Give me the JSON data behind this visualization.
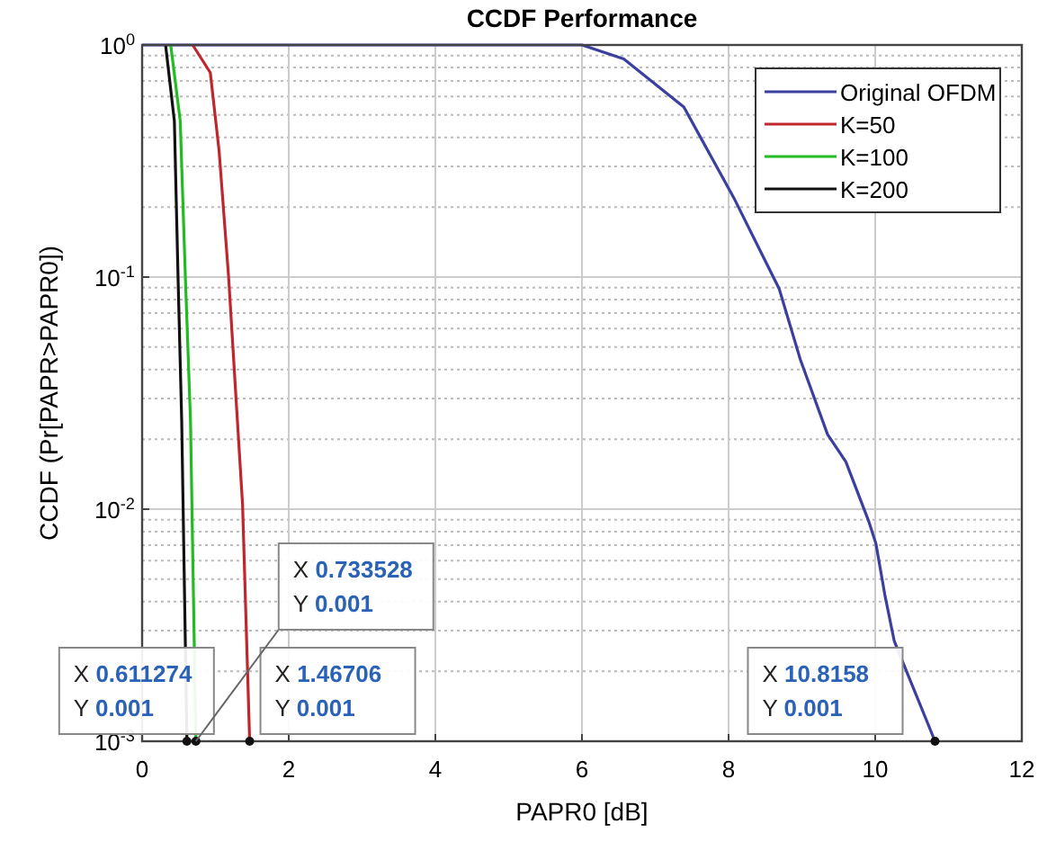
{
  "chart_data": {
    "type": "line",
    "title": "CCDF Performance",
    "xlabel": "PAPR0 [dB]",
    "ylabel": "CCDF (Pr[PAPR>PAPR0])",
    "log": "y",
    "grid": true,
    "legend": "top right",
    "line_style": "solid",
    "marker": "none",
    "xlim": [
      0,
      12
    ],
    "xticks": [
      0,
      2,
      4,
      6,
      8,
      10,
      12
    ],
    "ylim": [
      0.001,
      1
    ],
    "yticks": [
      {
        "value": 0.001,
        "label": "10$^{-3}$"
      },
      {
        "value": 0.01,
        "label": "10$^{-2}$"
      },
      {
        "value": 0.1,
        "label": "10$^{-1}$"
      },
      {
        "value": 1,
        "label": "10$^{0}$"
      }
    ],
    "series": [
      {
        "name": "Original OFDM",
        "color": "#3b3fa0",
        "x": [
          0,
          6.0,
          6.57,
          7.39,
          8.07,
          8.69,
          8.98,
          9.35,
          9.6,
          9.91,
          10.01,
          10.13,
          10.26,
          10.8158
        ],
        "values": [
          1,
          1,
          0.87,
          0.54,
          0.22,
          0.089,
          0.044,
          0.021,
          0.016,
          0.0089,
          0.0071,
          0.0043,
          0.0027,
          0.001
        ]
      },
      {
        "name": "K=50",
        "color": "#c0272d",
        "x": [
          0.69,
          0.93,
          1.05,
          1.18,
          1.3,
          1.37,
          1.46706
        ],
        "values": [
          1,
          0.76,
          0.35,
          0.1,
          0.024,
          0.0105,
          0.001
        ]
      },
      {
        "name": "K=100",
        "color": "#22bb22",
        "x": [
          0.39,
          0.52,
          0.59,
          0.66,
          0.733528
        ],
        "values": [
          1,
          0.47,
          0.1,
          0.024,
          0.001
        ]
      },
      {
        "name": "K=200",
        "color": "#111111",
        "x": [
          0.32,
          0.44,
          0.49,
          0.54,
          0.611274
        ],
        "values": [
          1,
          0.47,
          0.1,
          0.024,
          0.001
        ]
      }
    ],
    "annotations": [
      {
        "text": "X 0.611274\nY 0.001",
        "x": 0.611274,
        "y": 0.001
      },
      {
        "text": "X 1.46706\nY 0.001",
        "x": 1.46706,
        "y": 0.001
      },
      {
        "text": "X 0.733528\nY 0.001",
        "x": 0.733528,
        "y": 0.001
      },
      {
        "text": "X 10.8158\nY 0.001",
        "x": 10.8158,
        "y": 0.001
      }
    ]
  }
}
